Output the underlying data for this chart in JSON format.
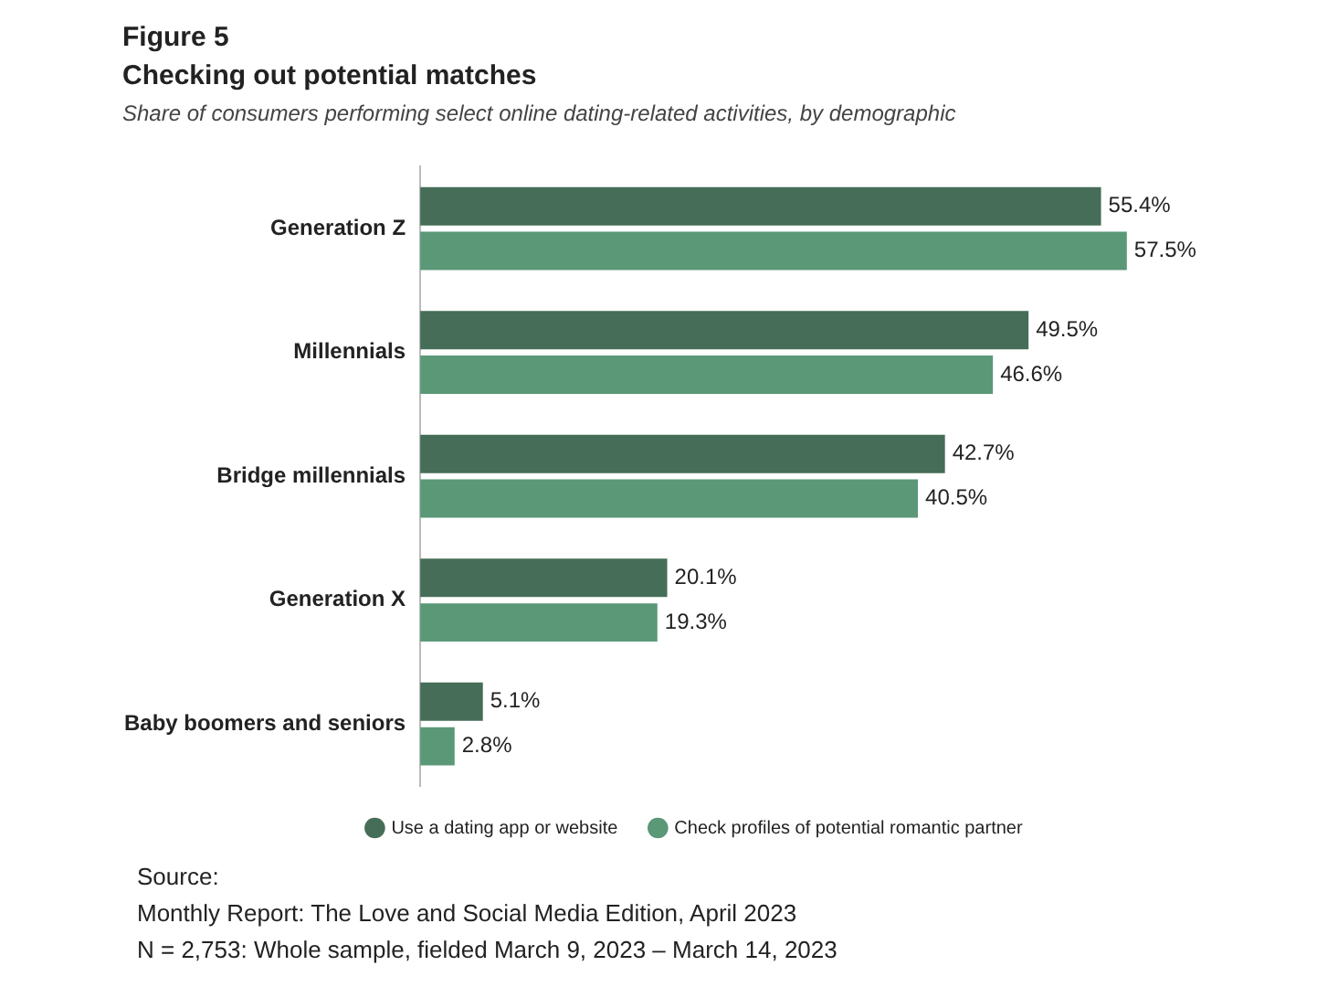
{
  "chart_data": {
    "type": "bar",
    "orientation": "horizontal",
    "title": "Checking out potential matches",
    "subtitle": "Share of consumers performing select online dating-related activities, by demographic",
    "categories": [
      "Generation Z",
      "Millennials",
      "Bridge millennials",
      "Generation X",
      "Baby boomers and seniors"
    ],
    "series": [
      {
        "name": "Use a dating app or website",
        "color": "#466d57",
        "values": [
          55.4,
          49.5,
          42.7,
          20.1,
          5.1
        ],
        "value_labels": [
          "55.4%",
          "49.5%",
          "42.7%",
          "20.1%",
          "5.1%"
        ]
      },
      {
        "name": "Check profiles of potential romantic partner",
        "color": "#5a9877",
        "values": [
          57.5,
          46.6,
          40.5,
          19.3,
          2.8
        ],
        "value_labels": [
          "57.5%",
          "46.6%",
          "40.5%",
          "19.3%",
          "2.8%"
        ]
      }
    ],
    "legend": "bottom",
    "annotations": [
      "Figure 5",
      "Source:",
      "Monthly Report: The Love and Social Media Edition, April 2023",
      "N = 2,753: Whole sample, fielded March 9, 2023 – March 14, 2023"
    ]
  }
}
